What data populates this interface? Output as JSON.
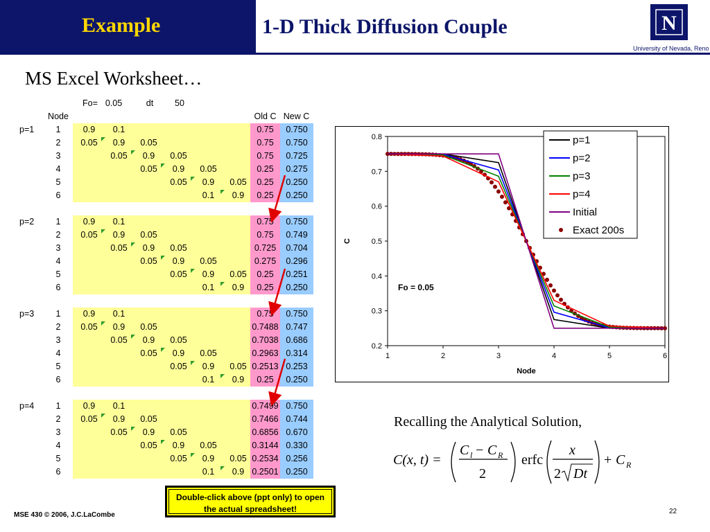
{
  "header": {
    "left_title": "Example",
    "right_title": "1-D Thick Diffusion Couple",
    "logo_letter": "N",
    "logo_text": "University of Nevada, Reno"
  },
  "subtitle": "MS Excel Worksheet…",
  "worksheet": {
    "params": {
      "fo_label": "Fo=",
      "fo_value": "0.05",
      "dt_label": "dt",
      "dt_value": "50"
    },
    "headers": {
      "node": "Node",
      "old_c": "Old C",
      "new_c": "New C"
    },
    "blocks": [
      {
        "label": "p=1",
        "rows": [
          {
            "node": "1",
            "a": "",
            "b": "0.9",
            "c": "0.1",
            "old": "0.75",
            "new": "0.750"
          },
          {
            "node": "2",
            "a": "0.05",
            "b": "0.9",
            "c": "0.05",
            "old": "0.75",
            "new": "0.750"
          },
          {
            "node": "3",
            "a": "0.05",
            "b": "0.9",
            "c": "0.05",
            "old": "0.75",
            "new": "0.725"
          },
          {
            "node": "4",
            "a": "0.05",
            "b": "0.9",
            "c": "0.05",
            "old": "0.25",
            "new": "0.275"
          },
          {
            "node": "5",
            "a": "0.05",
            "b": "0.9",
            "c": "0.05",
            "old": "0.25",
            "new": "0.250"
          },
          {
            "node": "6",
            "a": "0.1",
            "b": "0.9",
            "c": "",
            "old": "0.25",
            "new": "0.250"
          }
        ]
      },
      {
        "label": "p=2",
        "rows": [
          {
            "node": "1",
            "a": "",
            "b": "0.9",
            "c": "0.1",
            "old": "0.75",
            "new": "0.750"
          },
          {
            "node": "2",
            "a": "0.05",
            "b": "0.9",
            "c": "0.05",
            "old": "0.75",
            "new": "0.749"
          },
          {
            "node": "3",
            "a": "0.05",
            "b": "0.9",
            "c": "0.05",
            "old": "0.725",
            "new": "0.704"
          },
          {
            "node": "4",
            "a": "0.05",
            "b": "0.9",
            "c": "0.05",
            "old": "0.275",
            "new": "0.296"
          },
          {
            "node": "5",
            "a": "0.05",
            "b": "0.9",
            "c": "0.05",
            "old": "0.25",
            "new": "0.251"
          },
          {
            "node": "6",
            "a": "0.1",
            "b": "0.9",
            "c": "",
            "old": "0.25",
            "new": "0.250"
          }
        ]
      },
      {
        "label": "p=3",
        "rows": [
          {
            "node": "1",
            "a": "",
            "b": "0.9",
            "c": "0.1",
            "old": "0.75",
            "new": "0.750"
          },
          {
            "node": "2",
            "a": "0.05",
            "b": "0.9",
            "c": "0.05",
            "old": "0.7488",
            "new": "0.747"
          },
          {
            "node": "3",
            "a": "0.05",
            "b": "0.9",
            "c": "0.05",
            "old": "0.7038",
            "new": "0.686"
          },
          {
            "node": "4",
            "a": "0.05",
            "b": "0.9",
            "c": "0.05",
            "old": "0.2963",
            "new": "0.314"
          },
          {
            "node": "5",
            "a": "0.05",
            "b": "0.9",
            "c": "0.05",
            "old": "0.2513",
            "new": "0.253"
          },
          {
            "node": "6",
            "a": "0.1",
            "b": "0.9",
            "c": "",
            "old": "0.25",
            "new": "0.250"
          }
        ]
      },
      {
        "label": "p=4",
        "rows": [
          {
            "node": "1",
            "a": "",
            "b": "0.9",
            "c": "0.1",
            "old": "0.7499",
            "new": "0.750"
          },
          {
            "node": "2",
            "a": "0.05",
            "b": "0.9",
            "c": "0.05",
            "old": "0.7466",
            "new": "0.744"
          },
          {
            "node": "3",
            "a": "0.05",
            "b": "0.9",
            "c": "0.05",
            "old": "0.6856",
            "new": "0.670"
          },
          {
            "node": "4",
            "a": "0.05",
            "b": "0.9",
            "c": "0.05",
            "old": "0.3144",
            "new": "0.330"
          },
          {
            "node": "5",
            "a": "0.05",
            "b": "0.9",
            "c": "0.05",
            "old": "0.2534",
            "new": "0.256"
          },
          {
            "node": "6",
            "a": "0.1",
            "b": "0.9",
            "c": "",
            "old": "0.2501",
            "new": "0.250"
          }
        ]
      }
    ]
  },
  "chart_data": {
    "type": "line",
    "xlabel": "Node",
    "ylabel": "C",
    "xlim": [
      1,
      6
    ],
    "ylim": [
      0.2,
      0.8
    ],
    "xticks": [
      "1",
      "2",
      "3",
      "4",
      "5",
      "6"
    ],
    "yticks": [
      "0.2",
      "0.3",
      "0.4",
      "0.5",
      "0.6",
      "0.7",
      "0.8"
    ],
    "annotation": "Fo = 0.05",
    "legend_position": "top-right",
    "series": [
      {
        "name": "p=1",
        "color": "#000000",
        "x": [
          1,
          2,
          3,
          4,
          5,
          6
        ],
        "values": [
          0.75,
          0.75,
          0.725,
          0.275,
          0.25,
          0.25
        ]
      },
      {
        "name": "p=2",
        "color": "#0000ff",
        "x": [
          1,
          2,
          3,
          4,
          5,
          6
        ],
        "values": [
          0.75,
          0.749,
          0.704,
          0.296,
          0.251,
          0.25
        ]
      },
      {
        "name": "p=3",
        "color": "#008000",
        "x": [
          1,
          2,
          3,
          4,
          5,
          6
        ],
        "values": [
          0.75,
          0.747,
          0.686,
          0.314,
          0.253,
          0.25
        ]
      },
      {
        "name": "p=4",
        "color": "#ff0000",
        "x": [
          1,
          2,
          3,
          4,
          5,
          6
        ],
        "values": [
          0.75,
          0.744,
          0.67,
          0.33,
          0.256,
          0.25
        ]
      },
      {
        "name": "Initial",
        "color": "#800080",
        "x": [
          1,
          2,
          3,
          4,
          5,
          6
        ],
        "values": [
          0.75,
          0.75,
          0.75,
          0.25,
          0.25,
          0.25
        ]
      },
      {
        "name": "Exact 200s",
        "color": "#8b0000",
        "marker": "dot",
        "x": [],
        "values": []
      }
    ]
  },
  "formula": {
    "title": "Recalling the Analytical Solution,",
    "lhs": "C(x, t) =",
    "num1": "C",
    "num1_sub": "l",
    "minus": "−",
    "num2": "C",
    "num2_sub": "R",
    "den": "2",
    "erfc": "erfc",
    "x": "x",
    "den2": "2",
    "dt": "Dt",
    "plus": "+",
    "cr": "C",
    "cr_sub": "R"
  },
  "note": "Double-click above (ppt only) to open the actual spreadsheet!",
  "footer": "MSE 430 © 2006, J.C.LaCombe",
  "page_number": "22"
}
